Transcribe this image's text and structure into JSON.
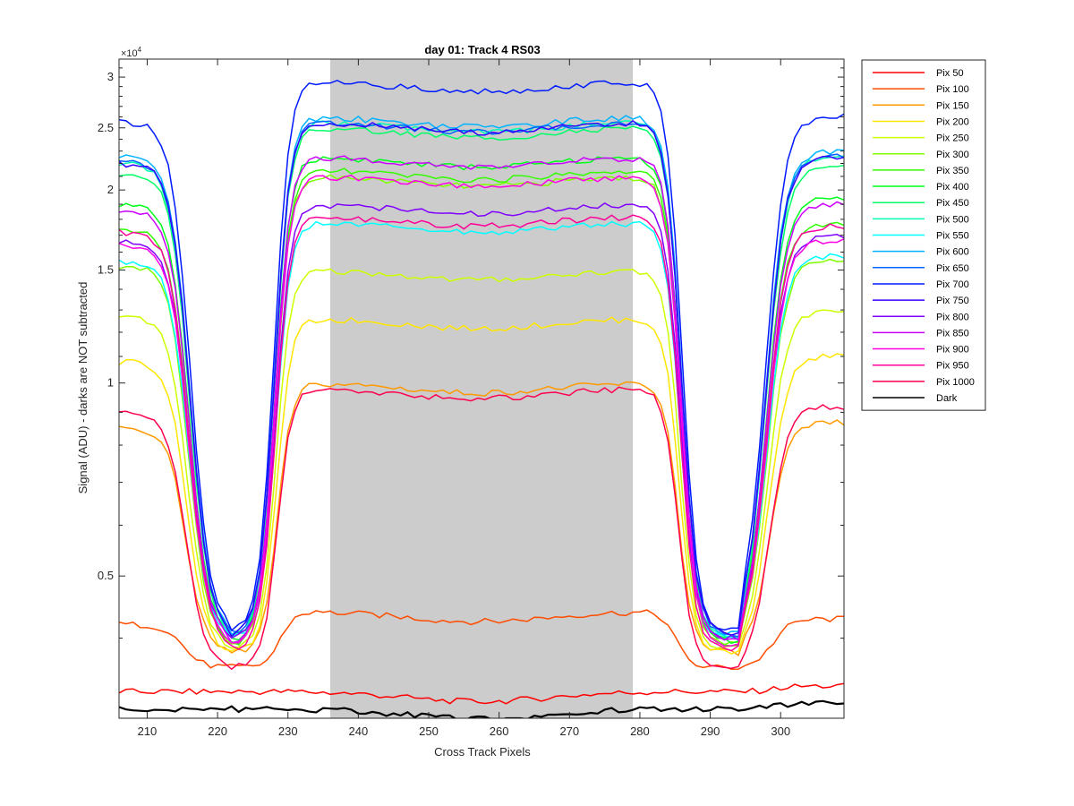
{
  "chart_data": {
    "type": "line",
    "title": "day 01: Track 4  RS03",
    "xlabel": "Cross Track Pixels",
    "ylabel": "Signal (ADU) - darks are NOT subtracted",
    "y_exponent_label": "×10",
    "y_exponent_power": "4",
    "y_scale": "log",
    "xlim": [
      206,
      309
    ],
    "ylim": [
      0.3,
      3.2
    ],
    "x_ticks": [
      210,
      220,
      230,
      240,
      250,
      260,
      270,
      280,
      290,
      300
    ],
    "y_ticks": [
      0.5,
      1,
      1.5,
      2,
      2.5,
      3
    ],
    "y_tick_labels": [
      "0.5",
      "1",
      "1.5",
      "2",
      "2.5",
      "3"
    ],
    "shaded_region": [
      236,
      279
    ],
    "legend_position": "outside-right",
    "grid": false,
    "series": [
      {
        "name": "Pix 50",
        "color": "#ff0000",
        "high_left": 0.33,
        "low": 0.33,
        "plateau": 0.33
      },
      {
        "name": "Pix 100",
        "color": "#ff4d00",
        "high_left": 0.42,
        "low": 0.36,
        "plateau": 0.44
      },
      {
        "name": "Pix 150",
        "color": "#ff9900",
        "high_left": 0.85,
        "low": 0.38,
        "plateau": 1.0
      },
      {
        "name": "Pix 200",
        "color": "#ffe600",
        "high_left": 1.08,
        "low": 0.38,
        "plateau": 1.26
      },
      {
        "name": "Pix 250",
        "color": "#ccff00",
        "high_left": 1.27,
        "low": 0.385,
        "plateau": 1.5
      },
      {
        "name": "Pix 300",
        "color": "#80ff00",
        "high_left": 1.52,
        "low": 0.39,
        "plateau": 2.1
      },
      {
        "name": "Pix 350",
        "color": "#33ff00",
        "high_left": 1.74,
        "low": 0.39,
        "plateau": 2.15
      },
      {
        "name": "Pix 400",
        "color": "#00ff1a",
        "high_left": 1.9,
        "low": 0.395,
        "plateau": 2.25
      },
      {
        "name": "Pix 450",
        "color": "#00ff66",
        "high_left": 2.12,
        "low": 0.4,
        "plateau": 2.5
      },
      {
        "name": "Pix 500",
        "color": "#00ffb3",
        "high_left": 2.2,
        "low": 0.4,
        "plateau": 2.55
      },
      {
        "name": "Pix 550",
        "color": "#00ffff",
        "high_left": 1.55,
        "low": 0.4,
        "plateau": 1.78
      },
      {
        "name": "Pix 600",
        "color": "#00b3ff",
        "high_left": 2.25,
        "low": 0.405,
        "plateau": 2.6
      },
      {
        "name": "Pix 650",
        "color": "#0066ff",
        "high_left": 2.22,
        "low": 0.405,
        "plateau": 2.55
      },
      {
        "name": "Pix 700",
        "color": "#001aff",
        "high_left": 2.55,
        "low": 0.41,
        "plateau": 2.95
      },
      {
        "name": "Pix 750",
        "color": "#3300ff",
        "high_left": 2.2,
        "low": 0.405,
        "plateau": 2.55
      },
      {
        "name": "Pix 800",
        "color": "#8000ff",
        "high_left": 1.66,
        "low": 0.4,
        "plateau": 1.9
      },
      {
        "name": "Pix 850",
        "color": "#cc00ff",
        "high_left": 1.86,
        "low": 0.395,
        "plateau": 2.25
      },
      {
        "name": "Pix 900",
        "color": "#ff00e6",
        "high_left": 1.64,
        "low": 0.39,
        "plateau": 2.1
      },
      {
        "name": "Pix 950",
        "color": "#ff0099",
        "high_left": 1.72,
        "low": 0.385,
        "plateau": 1.82
      },
      {
        "name": "Pix 1000",
        "color": "#ff004d",
        "high_left": 0.9,
        "low": 0.36,
        "plateau": 0.98
      },
      {
        "name": "Dark",
        "color": "#000000",
        "high_left": 0.31,
        "low": 0.31,
        "plateau": 0.31
      }
    ]
  }
}
